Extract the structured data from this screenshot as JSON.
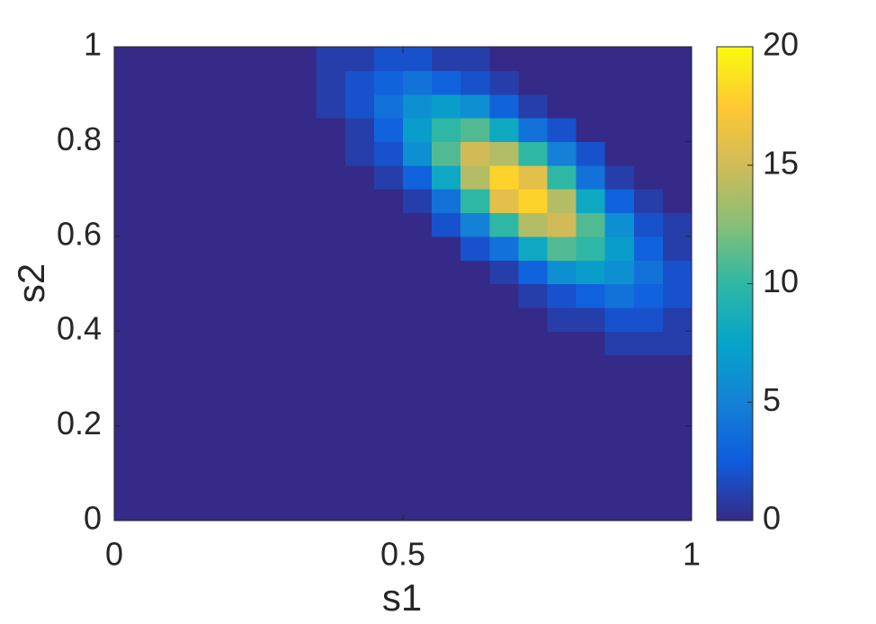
{
  "chart_data": {
    "type": "heatmap",
    "xlabel": "s1",
    "ylabel": "s2",
    "xlim": [
      0,
      1
    ],
    "ylim": [
      0,
      1
    ],
    "xticks": [
      0,
      0.5,
      1
    ],
    "yticks": [
      0,
      0.2,
      0.4,
      0.6,
      0.8,
      1
    ],
    "x": [
      0.025,
      0.075,
      0.125,
      0.175,
      0.225,
      0.275,
      0.325,
      0.375,
      0.425,
      0.475,
      0.525,
      0.575,
      0.625,
      0.675,
      0.725,
      0.775,
      0.825,
      0.875,
      0.925,
      0.975
    ],
    "y": [
      0.025,
      0.075,
      0.125,
      0.175,
      0.225,
      0.275,
      0.325,
      0.375,
      0.425,
      0.475,
      0.525,
      0.575,
      0.625,
      0.675,
      0.725,
      0.775,
      0.825,
      0.875,
      0.925,
      0.975
    ],
    "z": [
      [
        0,
        0,
        0,
        0,
        0,
        0,
        0,
        0,
        0,
        0,
        0,
        0,
        0,
        0,
        0,
        0,
        0,
        0,
        0,
        0
      ],
      [
        0,
        0,
        0,
        0,
        0,
        0,
        0,
        0,
        0,
        0,
        0,
        0,
        0,
        0,
        0,
        0,
        0,
        0,
        0,
        0
      ],
      [
        0,
        0,
        0,
        0,
        0,
        0,
        0,
        0,
        0,
        0,
        0,
        0,
        0,
        0,
        0,
        0,
        0,
        0,
        0,
        0
      ],
      [
        0,
        0,
        0,
        0,
        0,
        0,
        0,
        0,
        0,
        0,
        0,
        0,
        0,
        0,
        0,
        0,
        0,
        0,
        0,
        0
      ],
      [
        0,
        0,
        0,
        0,
        0,
        0,
        0,
        0,
        0,
        0,
        0,
        0,
        0,
        0,
        0,
        0,
        0,
        0,
        0,
        0
      ],
      [
        0,
        0,
        0,
        0,
        0,
        0,
        0,
        0,
        0,
        0,
        0,
        0,
        0,
        0,
        0,
        0,
        0,
        0,
        0,
        0
      ],
      [
        0,
        0,
        0,
        0,
        0,
        0,
        0,
        0,
        0,
        0,
        0,
        0,
        0,
        0,
        0,
        0,
        0,
        0,
        0,
        0
      ],
      [
        0,
        0,
        0,
        0,
        0,
        0,
        0,
        0,
        0,
        0,
        0,
        0,
        0,
        0,
        0,
        0,
        0,
        1,
        1,
        1
      ],
      [
        0,
        0,
        0,
        0,
        0,
        0,
        0,
        0,
        0,
        0,
        0,
        0,
        0,
        0,
        0,
        1,
        1,
        2,
        2,
        1
      ],
      [
        0,
        0,
        0,
        0,
        0,
        0,
        0,
        0,
        0,
        0,
        0,
        0,
        0,
        0,
        1,
        2,
        3,
        4,
        3,
        2
      ],
      [
        0,
        0,
        0,
        0,
        0,
        0,
        0,
        0,
        0,
        0,
        0,
        0,
        0,
        1,
        3,
        6,
        7,
        6,
        4,
        2
      ],
      [
        0,
        0,
        0,
        0,
        0,
        0,
        0,
        0,
        0,
        0,
        0,
        0,
        2,
        4,
        8,
        11,
        10,
        7,
        3,
        1
      ],
      [
        0,
        0,
        0,
        0,
        0,
        0,
        0,
        0,
        0,
        0,
        0,
        2,
        5,
        10,
        14,
        15,
        11,
        6,
        2,
        1
      ],
      [
        0,
        0,
        0,
        0,
        0,
        0,
        0,
        0,
        0,
        0,
        1,
        4,
        10,
        16,
        18,
        14,
        8,
        3,
        1,
        0
      ],
      [
        0,
        0,
        0,
        0,
        0,
        0,
        0,
        0,
        0,
        1,
        3,
        8,
        14,
        18,
        16,
        10,
        4,
        1,
        0,
        0
      ],
      [
        0,
        0,
        0,
        0,
        0,
        0,
        0,
        0,
        1,
        2,
        6,
        11,
        15,
        14,
        10,
        5,
        2,
        0,
        0,
        0
      ],
      [
        0,
        0,
        0,
        0,
        0,
        0,
        0,
        0,
        1,
        3,
        7,
        10,
        11,
        8,
        4,
        2,
        0,
        0,
        0,
        0
      ],
      [
        0,
        0,
        0,
        0,
        0,
        0,
        0,
        1,
        2,
        4,
        6,
        7,
        6,
        3,
        1,
        0,
        0,
        0,
        0,
        0
      ],
      [
        0,
        0,
        0,
        0,
        0,
        0,
        0,
        1,
        2,
        3,
        4,
        3,
        2,
        1,
        0,
        0,
        0,
        0,
        0,
        0
      ],
      [
        0,
        0,
        0,
        0,
        0,
        0,
        0,
        1,
        1,
        2,
        2,
        1,
        1,
        0,
        0,
        0,
        0,
        0,
        0,
        0
      ]
    ],
    "zlim": [
      0,
      20
    ],
    "zticks": [
      0,
      5,
      10,
      15,
      20
    ],
    "colormap": [
      "#352a87",
      "#0f5cdd",
      "#1481d6",
      "#06a4ca",
      "#2eb7a4",
      "#87bf77",
      "#d1bb59",
      "#fec832",
      "#f9fb0e"
    ]
  }
}
